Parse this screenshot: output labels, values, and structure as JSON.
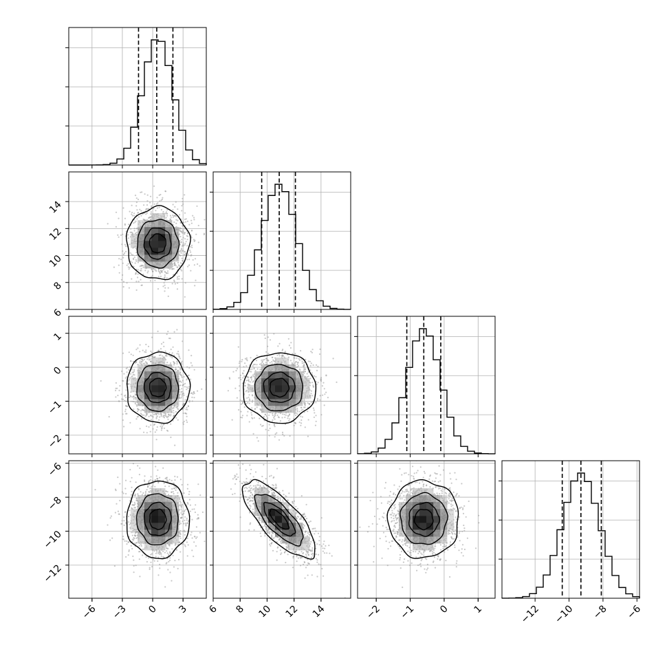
{
  "chart_data": {
    "type": "corner",
    "parameters": [
      {
        "mean": 0.5,
        "sd": 1.5,
        "range": [
          -8.3,
          5.3
        ],
        "ticks": [
          -6,
          -3,
          0,
          3
        ],
        "quantiles": [
          -1.4,
          0.4,
          2.0
        ],
        "hist_ticks": 3
      },
      {
        "mean": 10.9,
        "sd": 1.3,
        "range": [
          6,
          16.2
        ],
        "ticks": [
          6,
          8,
          10,
          12,
          14
        ],
        "quantiles": [
          9.6,
          10.9,
          12.1
        ],
        "hist_ticks": 3
      },
      {
        "mean": -0.6,
        "sd": 0.5,
        "range": [
          -2.55,
          1.5
        ],
        "ticks": [
          -2,
          -1,
          0,
          1
        ],
        "quantiles": [
          -1.1,
          -0.6,
          -0.1
        ],
        "hist_ticks": 3
      },
      {
        "mean": -9.3,
        "sd": 1.1,
        "range": [
          -13.95,
          -5.85
        ],
        "ticks": [
          -12,
          -10,
          -8,
          -6
        ],
        "quantiles": [
          -10.4,
          -9.3,
          -8.1
        ],
        "hist_ticks": 3
      }
    ],
    "y_axis_ticks": {
      "row1": [
        6,
        8,
        10,
        12,
        14
      ],
      "row2": [
        -2,
        -1,
        0,
        1
      ],
      "row3": [
        -12,
        -10,
        -8,
        -6
      ]
    },
    "correlations": [
      {
        "row": 1,
        "col": 0,
        "rho": 0.0
      },
      {
        "row": 2,
        "col": 0,
        "rho": 0.0
      },
      {
        "row": 2,
        "col": 1,
        "rho": 0.0
      },
      {
        "row": 3,
        "col": 0,
        "rho": 0.0
      },
      {
        "row": 3,
        "col": 1,
        "rho": -0.75
      },
      {
        "row": 3,
        "col": 2,
        "rho": 0.0
      }
    ],
    "histogram_bins": 20,
    "scatter_points_per_panel": 1400,
    "density_grid_bins": 20,
    "contour_levels_sigma": [
      0.5,
      1.0,
      1.5,
      2.0
    ],
    "quantile_line_style": "dashed",
    "grid": true,
    "colors": {
      "lines": "#000000",
      "points": "#9a9a9a",
      "grid": "#b0b0b0"
    }
  }
}
